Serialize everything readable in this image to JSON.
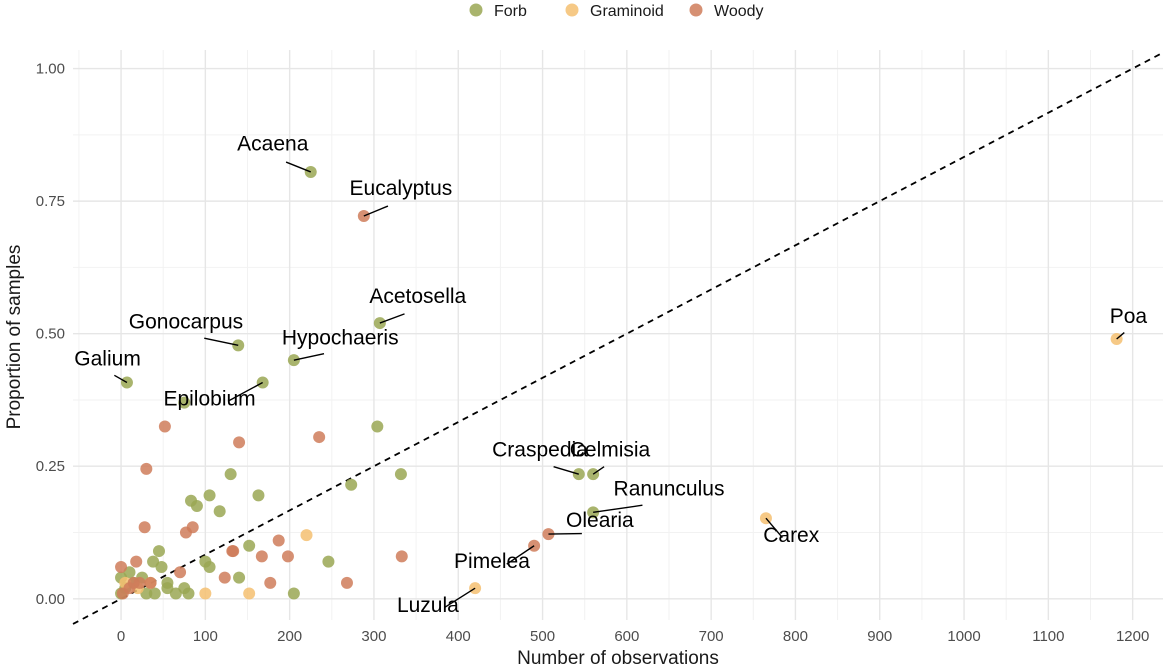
{
  "chart_data": {
    "type": "scatter",
    "xlabel": "Number of observations",
    "ylabel": "Proportion of samples",
    "xlim": [
      -57,
      1236
    ],
    "ylim": [
      -0.04,
      1.035
    ],
    "x_ticks": [
      "0",
      "100",
      "200",
      "300",
      "400",
      "500",
      "600",
      "700",
      "800",
      "900",
      "1000",
      "1100",
      "1200"
    ],
    "y_ticks": [
      "0.00",
      "0.25",
      "0.50",
      "0.75",
      "1.00"
    ],
    "grid": true,
    "legend_position": "top",
    "reference_line": {
      "style": "dashed",
      "from": [
        -57,
        -0.0475
      ],
      "to": [
        1236,
        1.03
      ]
    },
    "series": [
      {
        "name": "Forb",
        "color": "#9aa754",
        "points": [
          [
            225,
            0.805
          ],
          [
            307,
            0.52
          ],
          [
            139,
            0.478
          ],
          [
            205,
            0.45
          ],
          [
            168,
            0.408
          ],
          [
            7,
            0.408
          ],
          [
            75,
            0.37
          ],
          [
            304,
            0.325
          ],
          [
            543,
            0.235
          ],
          [
            560,
            0.235
          ],
          [
            130,
            0.235
          ],
          [
            332,
            0.235
          ],
          [
            273,
            0.215
          ],
          [
            105,
            0.195
          ],
          [
            163,
            0.195
          ],
          [
            83,
            0.185
          ],
          [
            90,
            0.175
          ],
          [
            117,
            0.165
          ],
          [
            560,
            0.163
          ],
          [
            152,
            0.1
          ],
          [
            45,
            0.09
          ],
          [
            100,
            0.07
          ],
          [
            246,
            0.07
          ],
          [
            38,
            0.07
          ],
          [
            105,
            0.06
          ],
          [
            48,
            0.06
          ],
          [
            140,
            0.04
          ],
          [
            25,
            0.04
          ],
          [
            0,
            0.04
          ],
          [
            10,
            0.05
          ],
          [
            55,
            0.03
          ],
          [
            75,
            0.02
          ],
          [
            55,
            0.02
          ],
          [
            65,
            0.01
          ],
          [
            40,
            0.01
          ],
          [
            80,
            0.01
          ],
          [
            30,
            0.01
          ],
          [
            0,
            0.01
          ],
          [
            205,
            0.01
          ],
          [
            5,
            0.02
          ],
          [
            15,
            0.03
          ]
        ]
      },
      {
        "name": "Graminoid",
        "color": "#f5c071",
        "points": [
          [
            1181,
            0.49
          ],
          [
            765,
            0.152
          ],
          [
            220,
            0.12
          ],
          [
            420,
            0.02
          ],
          [
            100,
            0.01
          ],
          [
            152,
            0.01
          ],
          [
            35,
            0.03
          ],
          [
            20,
            0.02
          ],
          [
            5,
            0.03
          ]
        ]
      },
      {
        "name": "Woody",
        "color": "#cf7d5a",
        "points": [
          [
            288,
            0.722
          ],
          [
            52,
            0.325
          ],
          [
            235,
            0.305
          ],
          [
            140,
            0.295
          ],
          [
            30,
            0.245
          ],
          [
            28,
            0.135
          ],
          [
            85,
            0.135
          ],
          [
            77,
            0.125
          ],
          [
            507,
            0.122
          ],
          [
            187,
            0.11
          ],
          [
            490,
            0.1
          ],
          [
            133,
            0.09
          ],
          [
            132,
            0.09
          ],
          [
            167,
            0.08
          ],
          [
            198,
            0.08
          ],
          [
            333,
            0.08
          ],
          [
            18,
            0.07
          ],
          [
            0,
            0.06
          ],
          [
            70,
            0.05
          ],
          [
            123,
            0.04
          ],
          [
            177,
            0.03
          ],
          [
            268,
            0.03
          ],
          [
            15,
            0.03
          ],
          [
            22,
            0.03
          ],
          [
            10,
            0.02
          ],
          [
            35,
            0.03
          ],
          [
            2,
            0.01
          ]
        ]
      }
    ],
    "annotations": [
      {
        "label": "Acaena",
        "x": 225,
        "y": 0.805,
        "text_x": 180,
        "text_y": 0.845,
        "anchor": "middle"
      },
      {
        "label": "Eucalyptus",
        "x": 288,
        "y": 0.722,
        "text_x": 332,
        "text_y": 0.762,
        "anchor": "middle"
      },
      {
        "label": "Acetosella",
        "x": 307,
        "y": 0.52,
        "text_x": 352,
        "text_y": 0.558,
        "anchor": "middle"
      },
      {
        "label": "Gonocarpus",
        "x": 139,
        "y": 0.478,
        "text_x": 77,
        "text_y": 0.51,
        "anchor": "middle"
      },
      {
        "label": "Hypochaeris",
        "x": 205,
        "y": 0.45,
        "text_x": 260,
        "text_y": 0.48,
        "anchor": "middle"
      },
      {
        "label": "Galium",
        "x": 7,
        "y": 0.408,
        "text_x": -16,
        "text_y": 0.44,
        "anchor": "middle"
      },
      {
        "label": "Epilobium",
        "x": 168,
        "y": 0.408,
        "text_x": 105,
        "text_y": 0.365,
        "anchor": "middle"
      },
      {
        "label": "Poa",
        "x": 1181,
        "y": 0.49,
        "text_x": 1195,
        "text_y": 0.52,
        "anchor": "middle"
      },
      {
        "label": "Craspedia",
        "x": 543,
        "y": 0.235,
        "text_x": 497,
        "text_y": 0.268,
        "anchor": "middle"
      },
      {
        "label": "Celmisia",
        "x": 560,
        "y": 0.235,
        "text_x": 580,
        "text_y": 0.268,
        "anchor": "middle"
      },
      {
        "label": "Ranunculus",
        "x": 560,
        "y": 0.163,
        "text_x": 650,
        "text_y": 0.195,
        "anchor": "middle"
      },
      {
        "label": "Olearia",
        "x": 507,
        "y": 0.122,
        "text_x": 568,
        "text_y": 0.135,
        "anchor": "middle"
      },
      {
        "label": "Carex",
        "x": 765,
        "y": 0.152,
        "text_x": 795,
        "text_y": 0.107,
        "anchor": "middle"
      },
      {
        "label": "Pimelea",
        "x": 490,
        "y": 0.1,
        "text_x": 440,
        "text_y": 0.058,
        "anchor": "middle"
      },
      {
        "label": "Luzula",
        "x": 420,
        "y": 0.02,
        "text_x": 364,
        "text_y": -0.025,
        "anchor": "middle"
      }
    ]
  }
}
